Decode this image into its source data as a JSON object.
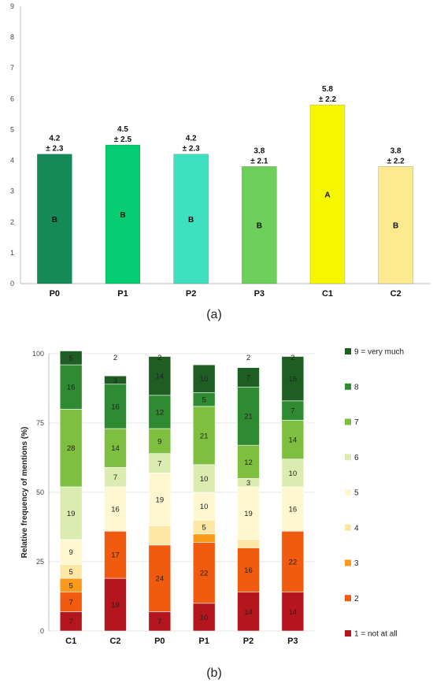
{
  "chart_data": [
    {
      "type": "bar",
      "panel_label": "(a)",
      "categories": [
        "P0",
        "P1",
        "P2",
        "P3",
        "C1",
        "C2"
      ],
      "values": [
        4.2,
        4.5,
        4.2,
        3.8,
        5.8,
        3.8
      ],
      "sd_labels": [
        "± 2.3",
        "± 2.5",
        "± 2.3",
        "± 2.1",
        "± 2.2",
        "± 2.2"
      ],
      "mean_labels": [
        "4.2",
        "4.5",
        "4.2",
        "3.8",
        "5.8",
        "3.8"
      ],
      "letters": [
        "B",
        "B",
        "B",
        "B",
        "A",
        "B"
      ],
      "colors": [
        "#138a57",
        "#06cc72",
        "#3fe0bf",
        "#6ccf5a",
        "#f6f600",
        "#fdea8f"
      ],
      "ylim": [
        0,
        9
      ],
      "yticks": [
        "0",
        "1",
        "2",
        "3",
        "4",
        "5",
        "6",
        "7",
        "8",
        "9"
      ],
      "xlabel": "",
      "ylabel": "",
      "grid": false
    },
    {
      "type": "bar",
      "stacked": true,
      "panel_label": "(b)",
      "ylabel": "Relative frequency of mentions (%)",
      "ylim": [
        0,
        100
      ],
      "yticks": [
        "0",
        "25",
        "50",
        "75",
        "100"
      ],
      "grid": true,
      "legend_position": "right",
      "categories": [
        "C1",
        "C2",
        "P0",
        "P1",
        "P2",
        "P3"
      ],
      "series": [
        {
          "name": "1 = not at all",
          "color": "#b5161e",
          "values": [
            7,
            19,
            7,
            10,
            14,
            14
          ],
          "labels": [
            "7",
            "19",
            "7",
            "10",
            "14",
            "14"
          ]
        },
        {
          "name": "2",
          "color": "#f05b0f",
          "values": [
            7,
            17,
            24,
            22,
            16,
            22
          ],
          "labels": [
            "7",
            "17",
            "24",
            "22",
            "16",
            "22"
          ]
        },
        {
          "name": "3",
          "color": "#f99a1a",
          "values": [
            5,
            0,
            0,
            3,
            0,
            0
          ],
          "labels": [
            "5",
            "",
            "",
            "",
            "",
            ""
          ]
        },
        {
          "name": "4",
          "color": "#fde7a4",
          "values": [
            5,
            0,
            7,
            5,
            3,
            0
          ],
          "labels": [
            "5",
            "",
            "",
            "5",
            "",
            ""
          ]
        },
        {
          "name": "5",
          "color": "#fff7cf",
          "values": [
            9,
            16,
            19,
            10,
            19,
            16
          ],
          "labels": [
            "9",
            "16",
            "19",
            "10",
            "19",
            "16"
          ]
        },
        {
          "name": "6",
          "color": "#dcecb0",
          "values": [
            19,
            7,
            7,
            10,
            3,
            10
          ],
          "labels": [
            "19",
            "7",
            "7",
            "10",
            "3",
            "10"
          ]
        },
        {
          "name": "7",
          "color": "#7ebf3f",
          "values": [
            28,
            14,
            9,
            21,
            12,
            14
          ],
          "labels": [
            "28",
            "14",
            "9",
            "21",
            "12",
            "14"
          ]
        },
        {
          "name": "8",
          "color": "#2e8b32",
          "values": [
            16,
            16,
            12,
            5,
            21,
            7
          ],
          "labels": [
            "16",
            "16",
            "12",
            "5",
            "21",
            "7"
          ]
        },
        {
          "name": "9 = very much",
          "color": "#1f5e22",
          "values": [
            5,
            3,
            14,
            10,
            7,
            16
          ],
          "labels": [
            "5",
            "3",
            "14",
            "10",
            "7",
            "16"
          ]
        }
      ],
      "top_labels": [
        "",
        "2",
        "2",
        "",
        "2",
        "2"
      ]
    }
  ]
}
